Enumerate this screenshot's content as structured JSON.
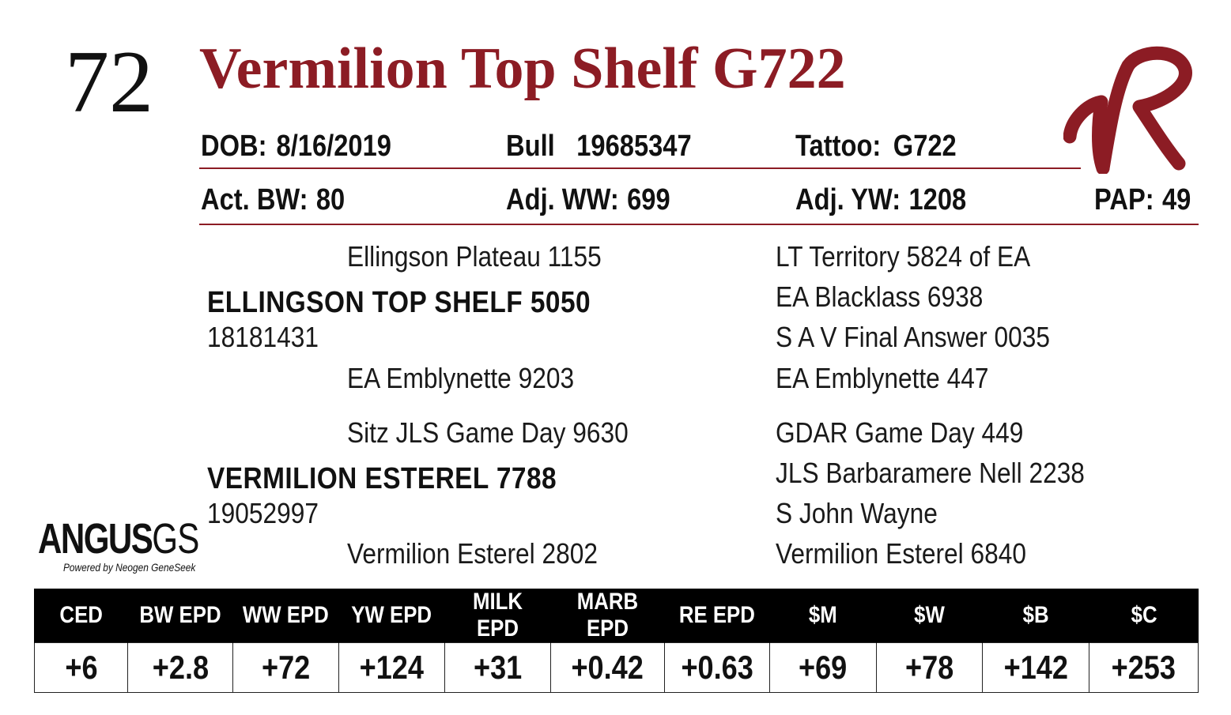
{
  "lot_number": "72",
  "name": "Vermilion Top Shelf G722",
  "info_row1": {
    "dob_label": "DOB:",
    "dob_value": "8/16/2019",
    "sex_label": "Bull",
    "reg_number": "19685347",
    "tattoo_label": "Tattoo:",
    "tattoo_value": "G722"
  },
  "info_row2": {
    "bw_label": "Act. BW:",
    "bw_value": "80",
    "ww_label": "Adj. WW:",
    "ww_value": "699",
    "yw_label": "Adj. YW:",
    "yw_value": "1208",
    "pap_label": "PAP:",
    "pap_value": "49"
  },
  "pedigree": {
    "sire": {
      "name": "ELLINGSON TOP SHELF 5050",
      "reg": "18181431",
      "sire": "Ellingson Plateau 1155",
      "dam": "EA Emblynette 9203",
      "sire_sire": "LT Territory 5824 of EA",
      "sire_dam": "EA Blacklass 6938",
      "dam_sire": "S A V Final Answer 0035",
      "dam_dam": "EA Emblynette 447"
    },
    "dam": {
      "name": "VERMILION ESTEREL 7788",
      "reg": "19052997",
      "sire": "Sitz JLS Game Day 9630",
      "dam": "Vermilion Esterel 2802",
      "sire_sire": "GDAR Game Day 449",
      "sire_dam": "JLS Barbaramere Nell 2238",
      "dam_sire": "S John Wayne",
      "dam_dam": "Vermilion Esterel 6840"
    }
  },
  "logo": {
    "main": "ANGUS",
    "suffix": "GS",
    "sub": "Powered by Neogen GeneSeek"
  },
  "epd": {
    "headers": [
      "CED",
      "BW EPD",
      "WW EPD",
      "YW EPD",
      "MILK EPD",
      "MARB EPD",
      "RE EPD",
      "$M",
      "$W",
      "$B",
      "$C"
    ],
    "values": [
      "+6",
      "+2.8",
      "+72",
      "+124",
      "+31",
      "+0.42",
      "+0.63",
      "+69",
      "+78",
      "+142",
      "+253"
    ]
  },
  "colors": {
    "accent": "#8c1c24",
    "text": "#111111",
    "header_bg": "#000000"
  }
}
